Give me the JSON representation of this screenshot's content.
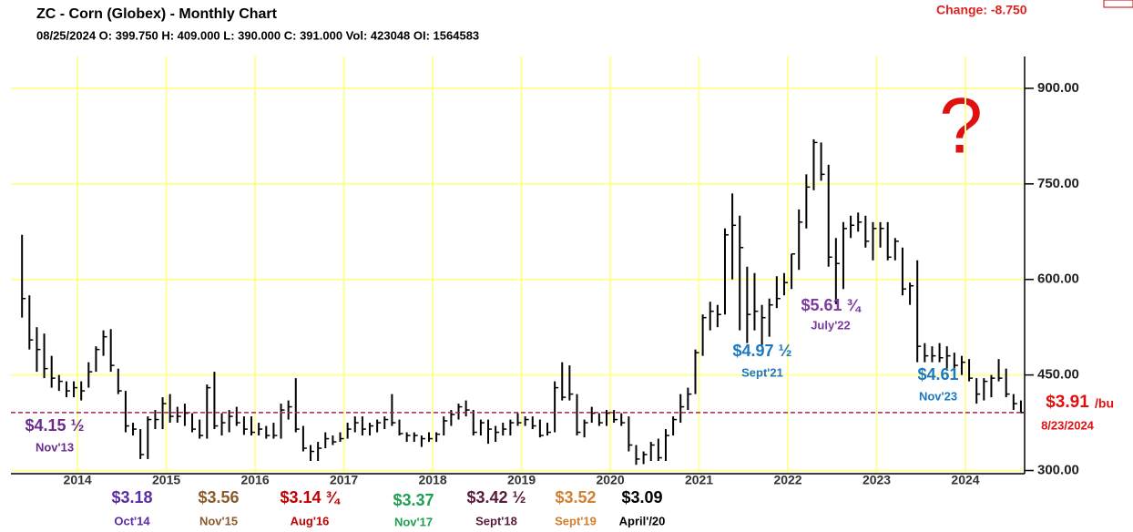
{
  "chart_data": {
    "type": "ohlc",
    "title": "ZC - Corn (Globex) - Monthly Chart",
    "subtitle": "08/25/2024 O: 399.750 H: 409.000 L: 390.000 C: 391.000 Vol: 423048 OI: 1564583",
    "change": "Change: -8.750",
    "question": "?",
    "color": "#000000",
    "grid_color": "#ffff99",
    "grid": true,
    "x": [
      "2013-05",
      "2013-06",
      "2013-07",
      "2013-08",
      "2013-09",
      "2013-10",
      "2013-11",
      "2013-12",
      "2014-01",
      "2014-02",
      "2014-03",
      "2014-04",
      "2014-05",
      "2014-06",
      "2014-07",
      "2014-08",
      "2014-09",
      "2014-10",
      "2014-11",
      "2014-12",
      "2015-01",
      "2015-02",
      "2015-03",
      "2015-04",
      "2015-05",
      "2015-06",
      "2015-07",
      "2015-08",
      "2015-09",
      "2015-10",
      "2015-11",
      "2015-12",
      "2016-01",
      "2016-02",
      "2016-03",
      "2016-04",
      "2016-05",
      "2016-06",
      "2016-07",
      "2016-08",
      "2016-09",
      "2016-10",
      "2016-11",
      "2016-12",
      "2017-01",
      "2017-02",
      "2017-03",
      "2017-04",
      "2017-05",
      "2017-06",
      "2017-07",
      "2017-08",
      "2017-09",
      "2017-10",
      "2017-11",
      "2017-12",
      "2018-01",
      "2018-02",
      "2018-03",
      "2018-04",
      "2018-05",
      "2018-06",
      "2018-07",
      "2018-08",
      "2018-09",
      "2018-10",
      "2018-11",
      "2018-12",
      "2019-01",
      "2019-02",
      "2019-03",
      "2019-04",
      "2019-05",
      "2019-06",
      "2019-07",
      "2019-08",
      "2019-09",
      "2019-10",
      "2019-11",
      "2019-12",
      "2020-01",
      "2020-02",
      "2020-03",
      "2020-04",
      "2020-05",
      "2020-06",
      "2020-07",
      "2020-08",
      "2020-09",
      "2020-10",
      "2020-11",
      "2020-12",
      "2021-01",
      "2021-02",
      "2021-03",
      "2021-04",
      "2021-05",
      "2021-06",
      "2021-07",
      "2021-08",
      "2021-09",
      "2021-10",
      "2021-11",
      "2021-12",
      "2022-01",
      "2022-02",
      "2022-03",
      "2022-04",
      "2022-05",
      "2022-06",
      "2022-07",
      "2022-08",
      "2022-09",
      "2022-10",
      "2022-11",
      "2022-12",
      "2023-01",
      "2023-02",
      "2023-03",
      "2023-04",
      "2023-05",
      "2023-06",
      "2023-07",
      "2023-08",
      "2023-09",
      "2023-10",
      "2023-11",
      "2023-12",
      "2024-01",
      "2024-02",
      "2024-03",
      "2024-04",
      "2024-05",
      "2024-06",
      "2024-07",
      "2024-08"
    ],
    "high": [
      670,
      575,
      525,
      515,
      480,
      450,
      440,
      440,
      440,
      470,
      495,
      520,
      522,
      460,
      425,
      375,
      365,
      385,
      395,
      415,
      420,
      400,
      405,
      390,
      380,
      435,
      455,
      390,
      395,
      400,
      385,
      385,
      375,
      370,
      375,
      405,
      410,
      445,
      370,
      340,
      345,
      360,
      355,
      360,
      375,
      385,
      385,
      375,
      380,
      385,
      420,
      380,
      360,
      360,
      355,
      360,
      360,
      385,
      395,
      405,
      410,
      395,
      380,
      380,
      370,
      375,
      380,
      390,
      385,
      385,
      380,
      375,
      440,
      470,
      465,
      420,
      380,
      400,
      390,
      395,
      395,
      390,
      385,
      340,
      330,
      345,
      350,
      365,
      385,
      420,
      430,
      490,
      545,
      565,
      560,
      680,
      735,
      700,
      620,
      610,
      560,
      570,
      605,
      610,
      640,
      710,
      765,
      820,
      815,
      780,
      665,
      690,
      700,
      705,
      700,
      690,
      690,
      690,
      665,
      650,
      595,
      630,
      500,
      495,
      500,
      495,
      485,
      480,
      475,
      445,
      445,
      450,
      475,
      460,
      420,
      410
    ],
    "low": [
      540,
      490,
      455,
      445,
      430,
      425,
      415,
      415,
      410,
      430,
      455,
      480,
      455,
      420,
      360,
      355,
      318,
      318,
      365,
      365,
      375,
      375,
      370,
      360,
      350,
      350,
      365,
      355,
      360,
      370,
      356,
      355,
      355,
      350,
      350,
      350,
      380,
      360,
      330,
      315,
      315,
      335,
      340,
      345,
      350,
      360,
      355,
      355,
      360,
      365,
      370,
      355,
      345,
      345,
      337,
      345,
      345,
      355,
      370,
      380,
      385,
      355,
      355,
      342,
      345,
      355,
      355,
      370,
      370,
      365,
      352,
      355,
      360,
      410,
      410,
      355,
      352,
      375,
      370,
      370,
      375,
      370,
      330,
      309,
      310,
      315,
      315,
      315,
      355,
      375,
      395,
      420,
      480,
      520,
      525,
      545,
      600,
      520,
      500,
      520,
      497,
      510,
      555,
      575,
      585,
      615,
      680,
      740,
      755,
      620,
      561,
      585,
      665,
      675,
      650,
      630,
      650,
      630,
      630,
      575,
      560,
      470,
      470,
      470,
      470,
      460,
      461,
      450,
      440,
      405,
      410,
      415,
      440,
      415,
      395,
      390
    ],
    "close": [
      570,
      505,
      490,
      460,
      445,
      440,
      425,
      430,
      425,
      455,
      490,
      510,
      465,
      425,
      370,
      365,
      325,
      380,
      380,
      405,
      385,
      385,
      390,
      365,
      355,
      430,
      370,
      375,
      385,
      375,
      365,
      360,
      365,
      355,
      355,
      395,
      400,
      365,
      335,
      330,
      335,
      350,
      345,
      350,
      365,
      375,
      365,
      370,
      375,
      380,
      375,
      358,
      355,
      355,
      350,
      350,
      357,
      378,
      388,
      400,
      395,
      360,
      375,
      365,
      360,
      365,
      375,
      375,
      380,
      370,
      355,
      360,
      430,
      415,
      420,
      360,
      375,
      390,
      375,
      390,
      380,
      375,
      340,
      318,
      325,
      340,
      320,
      355,
      380,
      400,
      420,
      485,
      540,
      550,
      545,
      670,
      685,
      650,
      545,
      550,
      540,
      560,
      570,
      595,
      640,
      690,
      745,
      815,
      765,
      635,
      625,
      680,
      685,
      690,
      660,
      680,
      680,
      635,
      660,
      585,
      590,
      495,
      480,
      480,
      477,
      480,
      465,
      470,
      445,
      420,
      440,
      445,
      445,
      420,
      405,
      391
    ],
    "xlim": [
      "2013-04",
      "2024-09"
    ],
    "xticks": [
      2014,
      2015,
      2016,
      2017,
      2018,
      2019,
      2020,
      2021,
      2022,
      2023,
      2024
    ],
    "ylim": [
      295,
      950
    ],
    "yticks": [
      {
        "value": 300,
        "label": "300.00"
      },
      {
        "value": 450,
        "label": "450.00"
      },
      {
        "value": 600,
        "label": "600.00"
      },
      {
        "value": 750,
        "label": "750.00"
      },
      {
        "value": 900,
        "label": "900.00"
      }
    ],
    "reference_line": {
      "value": 391,
      "color": "#a0205a"
    },
    "annotations": [
      {
        "price": "$4.15 ½",
        "date": "Nov'13",
        "color": "#6a2c8c"
      },
      {
        "price": "$3.18",
        "date": "Oct'14",
        "color": "#5a2ca8"
      },
      {
        "price": "$3.56",
        "date": "Nov'15",
        "color": "#8b5a2b"
      },
      {
        "price": "$3.14 ¾",
        "date": "Aug'16",
        "color": "#c00000"
      },
      {
        "price": "$3.37",
        "date": "Nov'17",
        "color": "#1ea050"
      },
      {
        "price": "$3.42 ½",
        "date": "Sept'18",
        "color": "#5a1a3a"
      },
      {
        "price": "$3.52",
        "date": "Sept'19",
        "color": "#d08030"
      },
      {
        "price": "$3.09",
        "date": "April'/20",
        "color": "#000000"
      },
      {
        "price": "$4.97 ½",
        "date": "Sept'21",
        "color": "#1a78c2"
      },
      {
        "price": "$5.61 ¾",
        "date": "July'22",
        "color": "#7a3aa0"
      },
      {
        "price": "$4.61",
        "date": "Nov'23",
        "color": "#1a78c2"
      },
      {
        "price": "$3.91",
        "unit": "/bu",
        "date": "8/23/2024",
        "color": "#e01010"
      }
    ]
  }
}
